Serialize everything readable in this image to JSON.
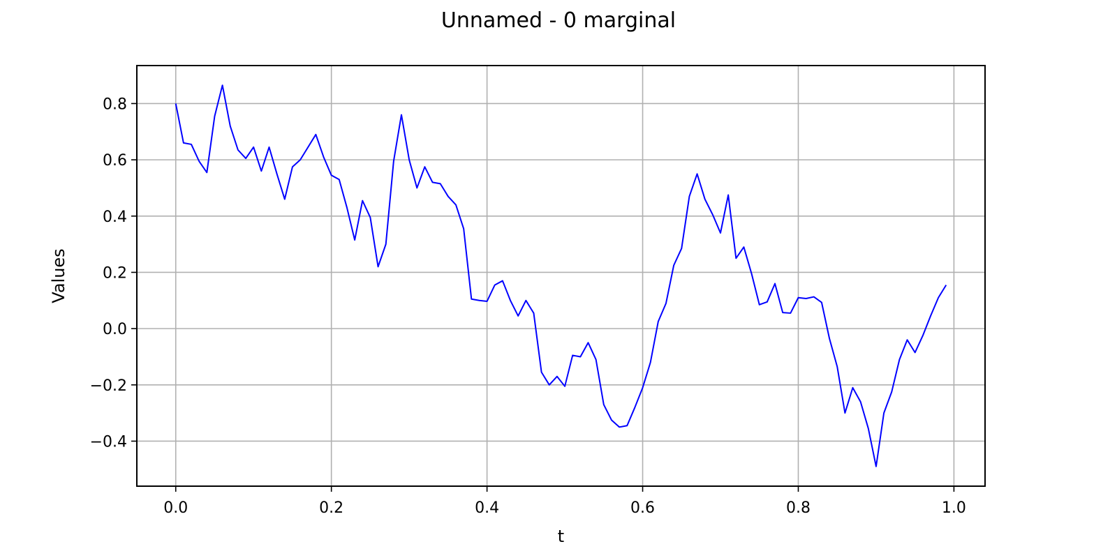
{
  "chart_data": {
    "type": "line",
    "title": "Unnamed - 0 marginal",
    "xlabel": "t",
    "ylabel": "Values",
    "xlim": [
      -0.05,
      1.04
    ],
    "ylim": [
      -0.56,
      0.935
    ],
    "xticks": [
      0.0,
      0.2,
      0.4,
      0.6,
      0.8,
      1.0
    ],
    "xtick_labels": [
      "0.0",
      "0.2",
      "0.4",
      "0.6",
      "0.8",
      "1.0"
    ],
    "yticks": [
      -0.4,
      -0.2,
      0.0,
      0.2,
      0.4,
      0.6,
      0.8
    ],
    "ytick_labels": [
      "−0.4",
      "−0.2",
      "0.0",
      "0.2",
      "0.4",
      "0.6",
      "0.8"
    ],
    "grid": true,
    "legend": false,
    "series": [
      {
        "color": "#0000ff",
        "x": [
          0.0,
          0.01,
          0.02,
          0.03,
          0.04,
          0.05,
          0.06,
          0.07,
          0.08,
          0.09,
          0.1,
          0.11,
          0.12,
          0.13,
          0.14,
          0.15,
          0.16,
          0.17,
          0.18,
          0.19,
          0.2,
          0.21,
          0.22,
          0.23,
          0.24,
          0.25,
          0.26,
          0.27,
          0.28,
          0.29,
          0.3,
          0.31,
          0.32,
          0.33,
          0.34,
          0.35,
          0.36,
          0.37,
          0.38,
          0.39,
          0.4,
          0.41,
          0.42,
          0.43,
          0.44,
          0.45,
          0.46,
          0.47,
          0.48,
          0.49,
          0.5,
          0.51,
          0.52,
          0.53,
          0.54,
          0.55,
          0.56,
          0.57,
          0.58,
          0.59,
          0.6,
          0.61,
          0.62,
          0.63,
          0.64,
          0.65,
          0.66,
          0.67,
          0.68,
          0.69,
          0.7,
          0.71,
          0.72,
          0.73,
          0.74,
          0.75,
          0.76,
          0.77,
          0.78,
          0.79,
          0.8,
          0.81,
          0.82,
          0.83,
          0.84,
          0.85,
          0.86,
          0.87,
          0.88,
          0.89,
          0.9,
          0.91,
          0.92,
          0.93,
          0.94,
          0.95,
          0.96,
          0.97,
          0.98,
          0.99
        ],
        "y": [
          0.8,
          0.66,
          0.655,
          0.595,
          0.555,
          0.755,
          0.865,
          0.72,
          0.635,
          0.605,
          0.645,
          0.56,
          0.645,
          0.55,
          0.46,
          0.575,
          0.6,
          0.645,
          0.69,
          0.61,
          0.545,
          0.53,
          0.43,
          0.315,
          0.455,
          0.395,
          0.22,
          0.3,
          0.595,
          0.76,
          0.6,
          0.5,
          0.575,
          0.52,
          0.515,
          0.47,
          0.44,
          0.355,
          0.105,
          0.1,
          0.097,
          0.155,
          0.17,
          0.1,
          0.045,
          0.1,
          0.055,
          -0.155,
          -0.2,
          -0.17,
          -0.205,
          -0.095,
          -0.1,
          -0.05,
          -0.11,
          -0.27,
          -0.325,
          -0.35,
          -0.345,
          -0.28,
          -0.21,
          -0.12,
          0.025,
          0.09,
          0.225,
          0.285,
          0.47,
          0.55,
          0.46,
          0.405,
          0.34,
          0.475,
          0.25,
          0.29,
          0.195,
          0.085,
          0.095,
          0.16,
          0.057,
          0.055,
          0.11,
          0.107,
          0.113,
          0.093,
          -0.035,
          -0.135,
          -0.3,
          -0.21,
          -0.26,
          -0.355,
          -0.49,
          -0.3,
          -0.225,
          -0.11,
          -0.04,
          -0.085,
          -0.025,
          0.045,
          0.11,
          0.155
        ]
      }
    ]
  }
}
